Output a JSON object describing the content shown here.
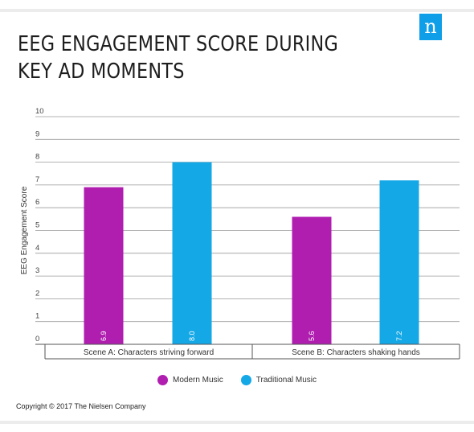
{
  "title": "EEG ENGAGEMENT SCORE DURING KEY AD MOMENTS",
  "logo_text": "n",
  "footer": "Copyright © 2017 The Nielsen Company",
  "colors": {
    "modern": "#b01eb0",
    "traditional": "#14a8e6",
    "logo": "#0f9ee8"
  },
  "chart_data": {
    "type": "bar",
    "title": "EEG ENGAGEMENT SCORE DURING KEY AD MOMENTS",
    "xlabel": "",
    "ylabel": "EEG Engagement Score",
    "ylim": [
      0,
      10
    ],
    "yticks": [
      0,
      1,
      2,
      3,
      4,
      5,
      6,
      7,
      8,
      9,
      10
    ],
    "grid": true,
    "legend_position": "bottom",
    "categories": [
      "Scene A: Characters striving forward",
      "Scene B: Characters shaking hands"
    ],
    "series": [
      {
        "name": "Modern Music",
        "values": [
          6.9,
          5.6
        ],
        "labels": [
          "6.9",
          "5.6"
        ]
      },
      {
        "name": "Traditional Music",
        "values": [
          8.0,
          7.2
        ],
        "labels": [
          "8.0",
          "7.2"
        ]
      }
    ]
  }
}
